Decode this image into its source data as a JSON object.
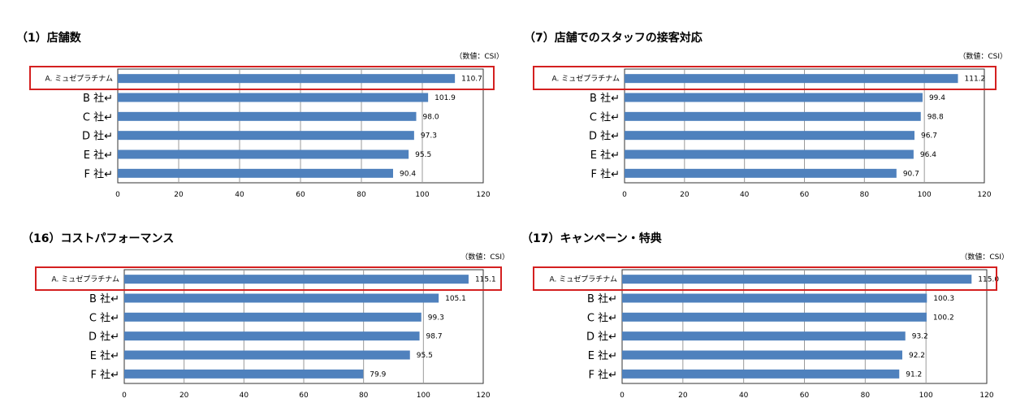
{
  "colors": {
    "bar": "#4f81bd",
    "highlight": "#d42020",
    "grid": "#9a9a9a",
    "axis": "#333333"
  },
  "chart_data": [
    {
      "type": "bar",
      "orientation": "horizontal",
      "title": "（1）店舗数",
      "unit_label": "（数値：CSI）",
      "categories": [
        "A. ミュゼプラチナム",
        "B 社↵",
        "C 社↵",
        "D 社↵",
        "E 社↵",
        "F 社↵"
      ],
      "values": [
        110.7,
        101.9,
        98.0,
        97.3,
        95.5,
        90.4
      ],
      "value_labels": [
        "110.7",
        "101.9",
        "98.0",
        "97.3",
        "95.5",
        "90.4"
      ],
      "highlight_category": "A. ミュゼプラチナム",
      "xlim": [
        0,
        120
      ],
      "xticks": [
        "0",
        "20",
        "40",
        "60",
        "80",
        "100",
        "120"
      ],
      "grid": true
    },
    {
      "type": "bar",
      "orientation": "horizontal",
      "title": "（7）店舗でのスタッフの接客対応",
      "unit_label": "（数値：CSI）",
      "categories": [
        "A. ミュゼプラチナム",
        "B 社↵",
        "C 社↵",
        "D 社↵",
        "E 社↵",
        "F 社↵"
      ],
      "values": [
        111.2,
        99.4,
        98.8,
        96.7,
        96.4,
        90.7
      ],
      "value_labels": [
        "111.2",
        "99.4",
        "98.8",
        "96.7",
        "96.4",
        "90.7"
      ],
      "highlight_category": "A. ミュゼプラチナム",
      "xlim": [
        0,
        120
      ],
      "xticks": [
        "0",
        "20",
        "40",
        "60",
        "80",
        "100",
        "120"
      ],
      "grid": true
    },
    {
      "type": "bar",
      "orientation": "horizontal",
      "title": "（16）コストパフォーマンス",
      "unit_label": "（数値：CSI）",
      "categories": [
        "A. ミュゼプラチナム",
        "B 社↵",
        "C 社↵",
        "D 社↵",
        "E 社↵",
        "F 社↵"
      ],
      "values": [
        115.1,
        105.1,
        99.3,
        98.7,
        95.5,
        79.9
      ],
      "value_labels": [
        "115.1",
        "105.1",
        "99.3",
        "98.7",
        "95.5",
        "79.9"
      ],
      "highlight_category": "A. ミュゼプラチナム",
      "xlim": [
        0,
        120
      ],
      "xticks": [
        "0",
        "20",
        "40",
        "60",
        "80",
        "100",
        "120"
      ],
      "grid": true
    },
    {
      "type": "bar",
      "orientation": "horizontal",
      "title": "（17）キャンペーン・特典",
      "unit_label": "（数値：CSI）",
      "categories": [
        "A. ミュゼプラチナム",
        "B 社↵",
        "C 社↵",
        "D 社↵",
        "E 社↵",
        "F 社↵"
      ],
      "values": [
        115.0,
        100.3,
        100.2,
        93.2,
        92.2,
        91.2
      ],
      "value_labels": [
        "115.0",
        "100.3",
        "100.2",
        "93.2",
        "92.2",
        "91.2"
      ],
      "highlight_category": "A. ミュゼプラチナム",
      "xlim": [
        0,
        120
      ],
      "xticks": [
        "0",
        "20",
        "40",
        "60",
        "80",
        "100",
        "120"
      ],
      "grid": true
    }
  ]
}
